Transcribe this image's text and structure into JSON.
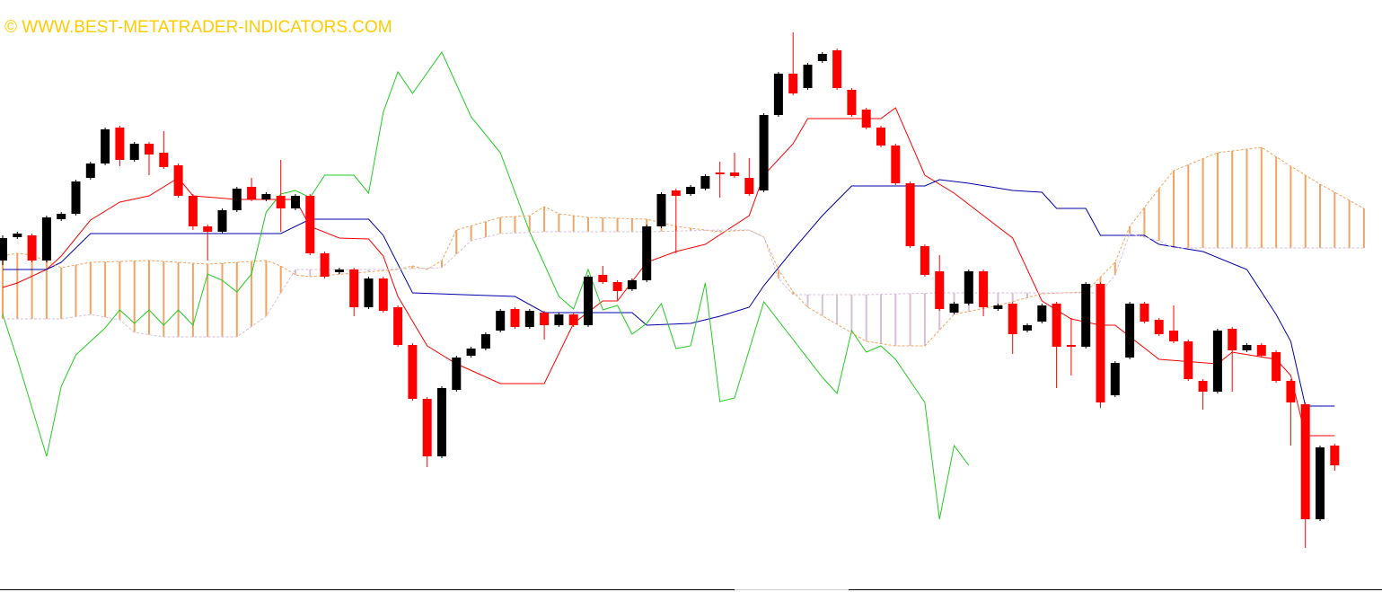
{
  "chart_data": {
    "type": "candlestick",
    "watermark": "© WWW.BEST-METATRADER-INDICATORS.COM",
    "ylim": [
      0,
      659
    ],
    "xlim": [
      0,
      94
    ],
    "up_color": "#000000",
    "down_color": "#ff0000",
    "open": [
      369,
      395,
      397,
      369,
      415,
      421,
      461,
      477,
      517,
      481,
      499,
      489,
      475,
      441,
      407,
      401,
      425,
      451,
      437,
      441,
      427,
      441,
      377,
      356,
      359,
      317,
      349,
      317,
      275,
      215,
      151,
      225,
      263,
      271,
      291,
      315,
      295,
      311,
      297,
      309,
      297,
      353,
      345,
      337,
      347,
      407,
      447,
      443,
      449,
      467,
      467,
      461,
      447,
      531,
      577,
      561,
      591,
      603,
      559,
      537,
      517,
      497,
      455,
      385,
      357,
      311,
      321,
      357,
      315,
      321,
      291,
      301,
      321,
      275,
      273,
      343,
      219,
      261,
      321,
      303,
      291,
      279,
      235,
      223,
      293,
      269,
      275,
      267,
      235,
      209,
      81,
      163
    ],
    "high": [
      397,
      401,
      399,
      419,
      423,
      459,
      479,
      517,
      519,
      501,
      501,
      513,
      477,
      443,
      409,
      427,
      451,
      461,
      445,
      481,
      443,
      443,
      379,
      361,
      361,
      351,
      351,
      319,
      277,
      217,
      229,
      263,
      273,
      289,
      315,
      317,
      315,
      313,
      311,
      311,
      353,
      363,
      347,
      349,
      409,
      445,
      449,
      453,
      465,
      479,
      489,
      483,
      533,
      579,
      623,
      589,
      601,
      605,
      561,
      539,
      519,
      499,
      457,
      387,
      375,
      323,
      359,
      359,
      321,
      323,
      299,
      321,
      323,
      305,
      345,
      345,
      257,
      323,
      323,
      305,
      319,
      281,
      237,
      293,
      295,
      277,
      277,
      269,
      237,
      211,
      163,
      165
    ],
    "low": [
      364,
      393,
      367,
      367,
      413,
      419,
      459,
      475,
      474,
      479,
      464,
      471,
      439,
      403,
      369,
      399,
      423,
      435,
      435,
      401,
      425,
      375,
      349,
      354,
      307,
      315,
      311,
      273,
      213,
      139,
      149,
      223,
      261,
      269,
      289,
      293,
      293,
      281,
      295,
      295,
      295,
      343,
      325,
      335,
      345,
      405,
      377,
      441,
      447,
      439,
      461,
      441,
      445,
      529,
      553,
      559,
      589,
      559,
      529,
      515,
      495,
      453,
      383,
      351,
      313,
      309,
      319,
      307,
      313,
      265,
      289,
      299,
      227,
      241,
      271,
      205,
      217,
      259,
      299,
      285,
      277,
      235,
      203,
      221,
      223,
      267,
      261,
      233,
      163,
      49,
      79,
      135
    ],
    "close": [
      394,
      399,
      369,
      417,
      421,
      457,
      477,
      515,
      481,
      499,
      487,
      473,
      441,
      407,
      401,
      425,
      449,
      437,
      443,
      427,
      441,
      377,
      351,
      359,
      317,
      349,
      313,
      275,
      215,
      151,
      227,
      261,
      271,
      287,
      313,
      295,
      313,
      297,
      309,
      297,
      351,
      345,
      335,
      347,
      407,
      443,
      441,
      451,
      463,
      465,
      463,
      443,
      531,
      577,
      555,
      587,
      599,
      561,
      531,
      517,
      497,
      455,
      385,
      353,
      315,
      321,
      357,
      317,
      319,
      287,
      297,
      319,
      273,
      273,
      343,
      211,
      255,
      321,
      301,
      287,
      279,
      237,
      223,
      291,
      269,
      275,
      263,
      235,
      211,
      81,
      161,
      141
    ],
    "series": [
      {
        "color": "#ff0000",
        "x": [
          0,
          1,
          3,
          4,
          6,
          8,
          10,
          12,
          13,
          16,
          20,
          21,
          23,
          25,
          26,
          27,
          29,
          31,
          34,
          37,
          39,
          41,
          42,
          44,
          46,
          48,
          51,
          52,
          54,
          55,
          60,
          61,
          63,
          65,
          69,
          71,
          73,
          75,
          76,
          79,
          83,
          84,
          87,
          88,
          89,
          91
        ],
        "values": [
          339,
          344,
          359,
          374,
          414,
          434,
          441,
          461,
          441,
          437,
          437,
          407,
          394,
          393,
          374,
          329,
          274,
          254,
          232,
          232,
          299,
          324,
          324,
          367,
          379,
          387,
          419,
          464,
          499,
          527,
          527,
          539,
          464,
          444,
          394,
          324,
          304,
          297,
          297,
          259,
          254,
          267,
          259,
          241,
          174,
          174
        ]
      },
      {
        "color": "#0000aa",
        "x": [
          0,
          3,
          4,
          6,
          19,
          21,
          25,
          26,
          28,
          35,
          37,
          43,
          44,
          47,
          49,
          51,
          52,
          54,
          56,
          58,
          63,
          64,
          66,
          69,
          71,
          72,
          74,
          75,
          78,
          79,
          82,
          85,
          87,
          88,
          89,
          91
        ],
        "values": [
          359,
          359,
          367,
          399,
          399,
          415,
          415,
          397,
          333,
          329,
          311,
          311,
          297,
          299,
          307,
          317,
          341,
          381,
          419,
          452,
          452,
          459,
          455,
          447,
          445,
          427,
          427,
          397,
          397,
          387,
          379,
          359,
          309,
          279,
          207,
          207
        ]
      },
      {
        "color": "#22cc22",
        "x": [
          0,
          1,
          3,
          4,
          5,
          7,
          8,
          9,
          10,
          11,
          12,
          13,
          14,
          15,
          16,
          17,
          18,
          19,
          20,
          21,
          22,
          24,
          25,
          26,
          27,
          28,
          30,
          32,
          34,
          36,
          38,
          39,
          40,
          41,
          42,
          43,
          44,
          45,
          46,
          47,
          48,
          49,
          50,
          52,
          54,
          56,
          57,
          58,
          59,
          60,
          61,
          63,
          64,
          65,
          66
        ],
        "values": [
          309,
          259,
          151,
          229,
          264,
          294,
          314,
          299,
          314,
          297,
          314,
          297,
          354,
          347,
          334,
          354,
          423,
          443,
          447,
          439,
          464,
          464,
          444,
          534,
          579,
          555,
          601,
          529,
          489,
          401,
          329,
          315,
          359,
          314,
          319,
          287,
          299,
          321,
          271,
          274,
          344,
          212,
          216,
          323,
          281,
          239,
          221,
          291,
          267,
          274,
          259,
          211,
          81,
          163,
          141
        ]
      },
      {
        "color": "#f4a460",
        "dashed": true,
        "x": [
          0,
          1,
          2,
          4,
          6,
          10,
          14,
          18,
          19,
          20,
          21,
          27,
          28,
          29,
          30,
          31,
          34,
          36,
          37,
          38,
          40,
          44,
          46,
          49,
          51,
          52,
          53,
          54,
          55,
          59,
          61,
          63,
          65,
          68,
          71,
          74,
          76,
          77,
          79,
          80,
          83,
          86,
          88,
          90,
          93
        ],
        "values": [
          374,
          377,
          375,
          361,
          367,
          369,
          365,
          369,
          363,
          353,
          351,
          359,
          363,
          359,
          369,
          403,
          417,
          419,
          429,
          421,
          417,
          415,
          407,
          401,
          403,
          395,
          359,
          334,
          317,
          279,
          274,
          274,
          309,
          319,
          332,
          334,
          367,
          407,
          449,
          469,
          489,
          495,
          474,
          454,
          427
        ]
      },
      {
        "color": "#d8bfd8",
        "dashed": true,
        "x": [
          0,
          4,
          6,
          8,
          9,
          11,
          16,
          18,
          20,
          26,
          30,
          32,
          34,
          37,
          44,
          49,
          51,
          52,
          53,
          54,
          59,
          64,
          75,
          76,
          77,
          79,
          80,
          93
        ],
        "values": [
          304,
          304,
          309,
          303,
          289,
          284,
          284,
          307,
          359,
          359,
          361,
          391,
          399,
          401,
          401,
          403,
          403,
          395,
          349,
          331,
          331,
          333,
          333,
          353,
          399,
          391,
          383,
          383
        ]
      }
    ],
    "cloud": true
  }
}
